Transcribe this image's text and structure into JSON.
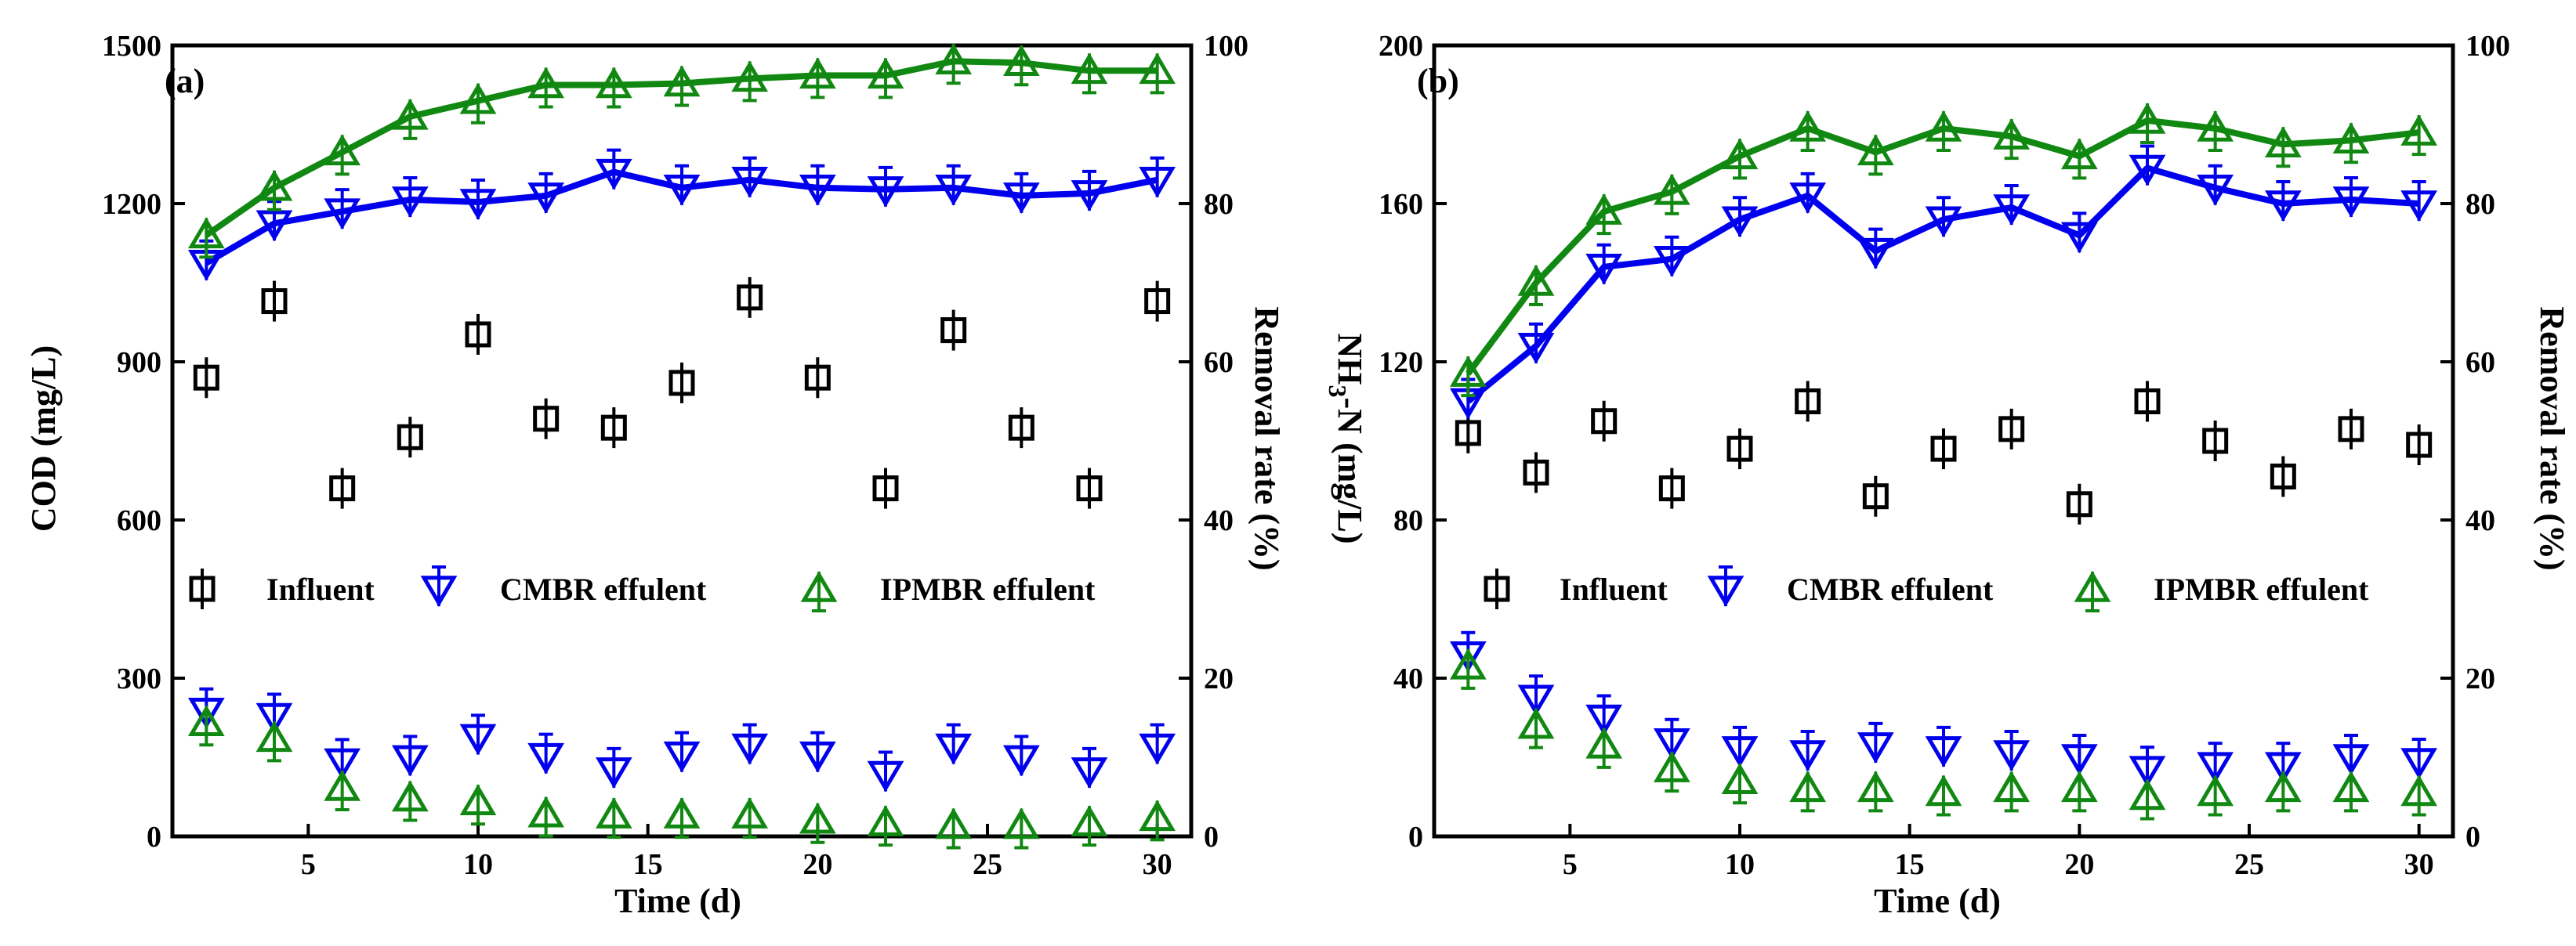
{
  "legend_labels": [
    "Influent",
    "CMBR  effulent",
    "IPMBR  effulent"
  ],
  "colors": {
    "influent": "#000000",
    "cmbr": "#0000ee",
    "ipmbr": "#118811"
  },
  "marker_icons": {
    "influent": "square-with-tick-icon",
    "cmbr": "down-triangle-with-tick-icon",
    "ipmbr": "up-triangle-with-tick-icon"
  },
  "chart_data": [
    {
      "type": "line",
      "panel_label": "(a)",
      "xlabel": "Time (d)",
      "ylabel_left": "COD (mg/L)",
      "ylabel_right": "Removal rate (%)",
      "xlim": [
        1,
        31
      ],
      "ylim_left": [
        0,
        1500
      ],
      "ylim_right": [
        0,
        100
      ],
      "x_ticks": [
        5,
        10,
        15,
        20,
        25,
        30
      ],
      "y_ticks_left": [
        0,
        300,
        600,
        900,
        1200,
        1500
      ],
      "y_ticks_right": [
        0,
        20,
        40,
        60,
        80,
        100
      ],
      "x": [
        2,
        4,
        6,
        8,
        10,
        12,
        14,
        16,
        18,
        20,
        22,
        24,
        26,
        28,
        30
      ],
      "series": [
        {
          "name": "Influent",
          "axis": "left",
          "style": "markers",
          "marker": "square",
          "values": [
            870,
            1015,
            660,
            757,
            952,
            792,
            775,
            860,
            1022,
            870,
            660,
            960,
            775,
            660,
            1015
          ]
        },
        {
          "name": "CMBR  effulent",
          "axis": "left",
          "style": "markers",
          "marker": "down",
          "values": [
            238,
            228,
            142,
            148,
            188,
            152,
            125,
            155,
            170,
            155,
            118,
            170,
            148,
            125,
            170
          ]
        },
        {
          "name": "IPMBR  effulent",
          "axis": "left",
          "style": "markers",
          "marker": "up",
          "values": [
            215,
            185,
            92,
            72,
            65,
            42,
            40,
            40,
            40,
            30,
            25,
            20,
            20,
            25,
            35
          ]
        },
        {
          "name": "",
          "axis": "right",
          "style": "line",
          "marker": "down",
          "color_key": "cmbr",
          "values": [
            72.5,
            77.5,
            79,
            80.5,
            80.2,
            81,
            84,
            82,
            83,
            82,
            81.8,
            82,
            81,
            81.3,
            83
          ]
        },
        {
          "name": "",
          "axis": "right",
          "style": "line",
          "marker": "up",
          "color_key": "ipmbr",
          "values": [
            76,
            82,
            86.5,
            91,
            93,
            95,
            95,
            95.2,
            95.8,
            96.2,
            96.2,
            98,
            97.8,
            96.8,
            96.8
          ]
        }
      ],
      "legend_position": "middle"
    },
    {
      "type": "line",
      "panel_label": "(b)",
      "xlabel": "Time (d)",
      "ylabel_left": "NH3-N (mg/L)",
      "ylabel_right": "Removal rate (%)",
      "xlim": [
        1,
        31
      ],
      "ylim_left": [
        0,
        200
      ],
      "ylim_right": [
        0,
        100
      ],
      "x_ticks": [
        5,
        10,
        15,
        20,
        25,
        30
      ],
      "y_ticks_left": [
        0,
        40,
        80,
        120,
        160,
        200
      ],
      "y_ticks_right": [
        0,
        20,
        40,
        60,
        80,
        100
      ],
      "x": [
        2,
        4,
        6,
        8,
        10,
        12,
        14,
        16,
        18,
        20,
        22,
        24,
        26,
        28,
        30
      ],
      "series": [
        {
          "name": "Influent",
          "axis": "left",
          "style": "markers",
          "marker": "square",
          "values": [
            102,
            92,
            105,
            88,
            98,
            110,
            86,
            98,
            103,
            84,
            110,
            100,
            91,
            103,
            99
          ]
        },
        {
          "name": "CMBR  effulent",
          "axis": "left",
          "style": "markers",
          "marker": "down",
          "values": [
            46,
            35,
            30,
            24,
            22,
            21,
            23,
            22,
            21,
            20,
            17,
            18,
            18,
            20,
            19
          ]
        },
        {
          "name": "IPMBR  effulent",
          "axis": "left",
          "style": "markers",
          "marker": "up",
          "values": [
            43,
            28,
            23,
            17,
            14,
            12,
            12,
            11,
            12,
            12,
            10,
            11,
            12,
            12,
            11
          ]
        },
        {
          "name": "",
          "axis": "right",
          "style": "line",
          "marker": "down",
          "color_key": "cmbr",
          "values": [
            55,
            62,
            72,
            73,
            78,
            81,
            74,
            78,
            79.5,
            76,
            84.5,
            82,
            80,
            80.5,
            80
          ]
        },
        {
          "name": "",
          "axis": "right",
          "style": "line",
          "marker": "up",
          "color_key": "ipmbr",
          "values": [
            58.5,
            70,
            79,
            81.5,
            86,
            89.5,
            86.5,
            89.5,
            88.5,
            86,
            90.5,
            89.5,
            87.5,
            88,
            89
          ]
        }
      ],
      "legend_position": "middle"
    }
  ]
}
